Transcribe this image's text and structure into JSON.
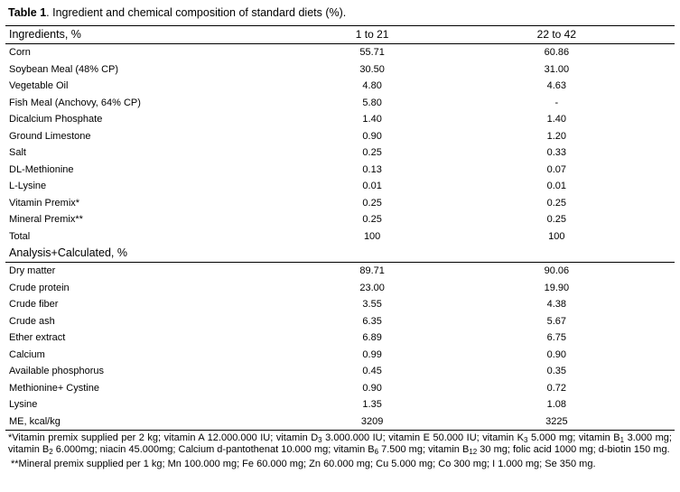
{
  "caption": {
    "label": "Table 1",
    "text": ". Ingredient and chemical composition of standard diets (%)."
  },
  "header": {
    "ingredients": "Ingredients, %",
    "col1": "1 to 21",
    "col2": "22 to 42"
  },
  "ingredients": [
    {
      "name": "Corn",
      "v1": "55.71",
      "v2": "60.86"
    },
    {
      "name": "Soybean Meal (48% CP)",
      "v1": "30.50",
      "v2": "31.00"
    },
    {
      "name": "Vegetable Oil",
      "v1": "4.80",
      "v2": "4.63"
    },
    {
      "name": "Fish Meal (Anchovy, 64% CP)",
      "v1": "5.80",
      "v2": "-"
    },
    {
      "name": "Dicalcium Phosphate",
      "v1": "1.40",
      "v2": "1.40"
    },
    {
      "name": "Ground Limestone",
      "v1": "0.90",
      "v2": "1.20"
    },
    {
      "name": "Salt",
      "v1": "0.25",
      "v2": "0.33"
    },
    {
      "name": "DL-Methionine",
      "v1": "0.13",
      "v2": "0.07"
    },
    {
      "name": "L-Lysine",
      "v1": "0.01",
      "v2": "0.01"
    },
    {
      "name": "Vitamin Premix*",
      "v1": "0.25",
      "v2": "0.25"
    },
    {
      "name": "Mineral Premix**",
      "v1": "0.25",
      "v2": "0.25"
    },
    {
      "name": "Total",
      "v1": "100",
      "v2": "100"
    }
  ],
  "analysis_header": "Analysis+Calculated, %",
  "analysis": [
    {
      "name": "Dry matter",
      "v1": "89.71",
      "v2": "90.06"
    },
    {
      "name": "Crude protein",
      "v1": "23.00",
      "v2": "19.90"
    },
    {
      "name": "Crude fiber",
      "v1": "3.55",
      "v2": "4.38"
    },
    {
      "name": "Crude ash",
      "v1": "6.35",
      "v2": "5.67"
    },
    {
      "name": "Ether extract",
      "v1": "6.89",
      "v2": "6.75"
    },
    {
      "name": "Calcium",
      "v1": "0.99",
      "v2": "0.90"
    },
    {
      "name": "Available phosphorus",
      "v1": "0.45",
      "v2": "0.35"
    },
    {
      "name": "Methionine+ Cystine",
      "v1": "0.90",
      "v2": "0.72"
    },
    {
      "name": "Lysine",
      "v1": "1.35",
      "v2": "1.08"
    },
    {
      "name": "ME, kcal/kg",
      "v1": "3209",
      "v2": "3225"
    }
  ],
  "footnote_vitamin": [
    {
      "t": "*Vitamin premix supplied per 2 kg; vitamin A 12.000.000 IU; vitamin D"
    },
    {
      "sub": "3"
    },
    {
      "t": " 3.000.000 IU; vitamin E 50.000 IU; vitamin K"
    },
    {
      "sub": "3"
    },
    {
      "t": " 5.000 mg; vitamin B"
    },
    {
      "sub": "1"
    },
    {
      "t": " 3.000 mg;  vitamin B"
    },
    {
      "sub": "2"
    },
    {
      "t": " 6.000mg; niacin 45.000mg; Calcium d-pantothenat 10.000 mg; vitamin B"
    },
    {
      "sub": "6"
    },
    {
      "t": " 7.500 mg; vitamin B"
    },
    {
      "sub": "12"
    },
    {
      "t": " 30 mg; folic acid 1000 mg; d-biotin 150 mg."
    }
  ],
  "footnote_mineral": "**Mineral premix supplied per 1 kg; Mn 100.000 mg; Fe 60.000 mg; Zn 60.000 mg; Cu 5.000 mg; Co 300 mg; I 1.000 mg; Se 350 mg."
}
